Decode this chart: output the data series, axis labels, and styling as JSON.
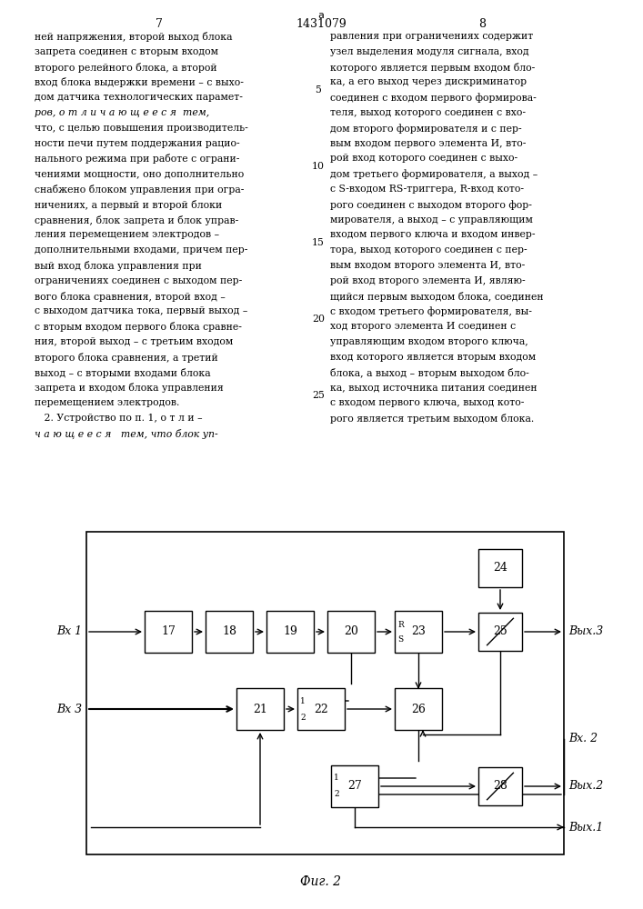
{
  "title": "1431079",
  "page_left": "7",
  "page_right": "8",
  "fig_label": "Фиг. 2",
  "bg_color": "#ffffff",
  "text_color": "#000000",
  "text_body_left": [
    "ней напряжения, второй выход блока",
    "запрета соединен с вторым входом",
    "второго релейного блока, а второй",
    "вход блока выдержки времени – с выхо-",
    "дом датчика технологических парамет-",
    "ров, о т л и ч а ю щ е е с я  тем,",
    "что, с целью повышения производитель-",
    "ности печи путем поддержания рацио-",
    "нального режима при работе с ограни-",
    "чениями мощности, оно дополнительно",
    "снабжено блоком управления при огра-",
    "ничениях, а первый и второй блоки",
    "сравнения, блок запрета и блок управ-",
    "ления перемещением электродов –",
    "дополнительными входами, причем пер-",
    "вый вход блока управления при",
    "ограничениях соединен с выходом пер-",
    "вого блока сравнения, второй вход –",
    "с выходом датчика тока, первый выход –",
    "с вторым входом первого блока сравне-",
    "ния, второй выход – с третьим входом",
    "второго блока сравнения, а третий",
    "выход – с вторыми входами блока",
    "запрета и входом блока управления",
    "перемещением электродов.",
    "   2. Устройство по п. 1, о т л и –",
    "ч а ю щ е е с я   тем, что блок уп-"
  ],
  "text_body_right": [
    "равления при ограничениях содержит",
    "узел выделения модуля сигнала, вход",
    "которого является первым входом бло-",
    "ка, а его выход через дискриминатор",
    "соединен с входом первого формирова-",
    "теля, выход которого соединен с вхо-",
    "дом второго формирователя и с пер-",
    "вым входом первого элемента И, вто-",
    "рой вход которого соединен с выхо-",
    "дом третьего формирователя, а выход –",
    "с S-входом RS-триггера, R-вход кото-",
    "рого соединен с выходом второго фор-",
    "мирователя, а выход – с управляющим",
    "входом первого ключа и входом инвер-",
    "тора, выход которого соединен с пер-",
    "вым входом второго элемента И, вто-",
    "рой вход второго элемента И, являю-",
    "щийся первым выходом блока, соединен",
    "с входом третьего формирователя, вы-",
    "ход второго элемента И соединен с",
    "управляющим входом второго ключа,",
    "вход которого является вторым входом",
    "блока, а выход – вторым выходом бло-",
    "ка, выход источника питания соединен",
    "с входом первого ключа, выход кото-",
    "рого является третьим выходом блока."
  ]
}
